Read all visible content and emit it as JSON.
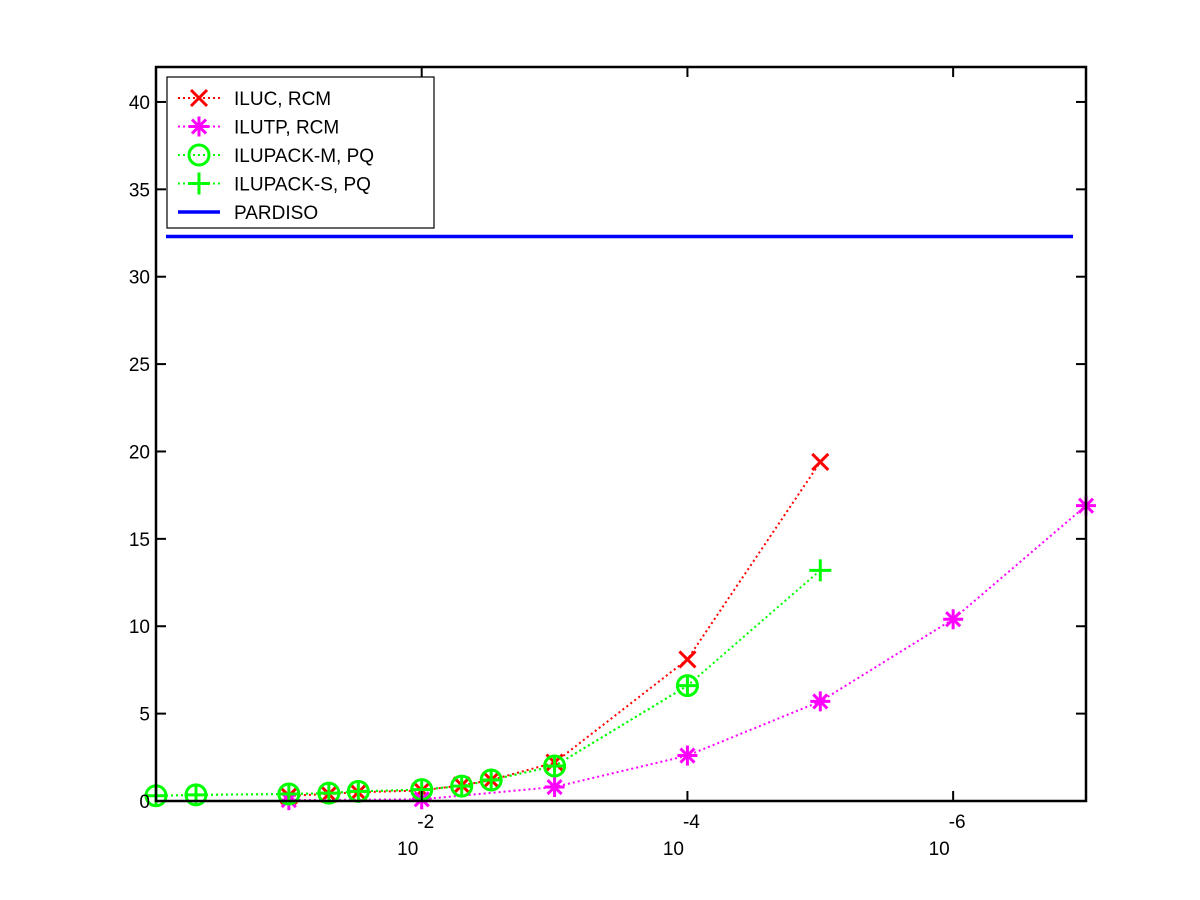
{
  "chart_data": {
    "type": "line",
    "x_scale": "log",
    "x_reversed": true,
    "xlim": [
      1,
      1e-07
    ],
    "ylim": [
      0,
      42
    ],
    "grid": false,
    "legend_placement": "top-left",
    "x_ticks": [
      {
        "value": 0.01,
        "base": "10",
        "exponent": "-2"
      },
      {
        "value": 0.0001,
        "base": "10",
        "exponent": "-4"
      },
      {
        "value": 1e-06,
        "base": "10",
        "exponent": "-6"
      }
    ],
    "y_ticks": [
      0,
      5,
      10,
      15,
      20,
      25,
      30,
      35,
      40
    ],
    "y_tick_labels": [
      "0",
      "5",
      "10",
      "15",
      "20",
      "25",
      "30",
      "35",
      "40"
    ],
    "series": [
      {
        "name": "ILUC, RCM",
        "color": "#ff0000",
        "marker": "x",
        "line_style": "dotted",
        "x": [
          0.1,
          0.05,
          0.03,
          0.01,
          0.005,
          0.003,
          0.001,
          0.0001,
          1e-05
        ],
        "y": [
          0.3,
          0.4,
          0.5,
          0.6,
          0.9,
          1.2,
          2.2,
          8.1,
          19.4
        ]
      },
      {
        "name": "ILUTP, RCM",
        "color": "#ff00ff",
        "marker": "asterisk",
        "line_style": "dotted",
        "x": [
          0.1,
          0.01,
          0.001,
          0.0001,
          1e-05,
          1e-06,
          1e-07
        ],
        "y": [
          0.05,
          0.1,
          0.8,
          2.6,
          5.7,
          10.4,
          16.9
        ]
      },
      {
        "name": "ILUPACK-M, PQ",
        "color": "#00ff00",
        "marker": "circle",
        "line_style": "dotted",
        "x": [
          1,
          0.5,
          0.1,
          0.05,
          0.03,
          0.01,
          0.005,
          0.003,
          0.001,
          0.0001
        ],
        "y": [
          0.3,
          0.35,
          0.4,
          0.45,
          0.55,
          0.65,
          0.85,
          1.2,
          2.0,
          6.6
        ]
      },
      {
        "name": "ILUPACK-S, PQ",
        "color": "#00ff00",
        "marker": "plus",
        "line_style": "dotted",
        "x": [
          1,
          0.5,
          0.1,
          0.05,
          0.03,
          0.01,
          0.005,
          0.003,
          0.001,
          0.0001,
          1e-05
        ],
        "y": [
          0.3,
          0.35,
          0.4,
          0.45,
          0.55,
          0.65,
          0.85,
          1.2,
          2.0,
          6.6,
          13.2
        ]
      },
      {
        "name": "PARDISO",
        "color": "#0000ff",
        "marker": "none",
        "line_style": "solid",
        "constant": 32.3
      }
    ]
  }
}
